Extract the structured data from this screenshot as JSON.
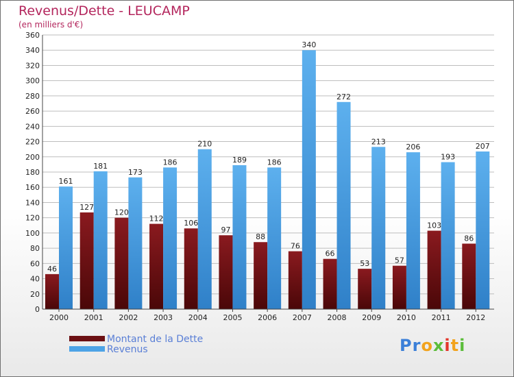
{
  "header": {
    "title": "Revenus/Dette - LEUCAMP",
    "subtitle": "(en milliers d'€)"
  },
  "legend": {
    "items": [
      {
        "label": "Montant de la Dette",
        "color": "#6b0f12"
      },
      {
        "label": "Revenus",
        "color": "#4da3e6"
      }
    ]
  },
  "logo": {
    "text": "Proxiti"
  },
  "colors": {
    "dette": "#6b0f12",
    "revenus": "#4da3e6",
    "title": "#b3255c",
    "grid": "#b9b9b9"
  },
  "chart_data": {
    "type": "bar",
    "title": "Revenus/Dette - LEUCAMP",
    "subtitle": "(en milliers d'€)",
    "xlabel": "",
    "ylabel": "",
    "ylim": [
      0,
      360
    ],
    "ytick_step": 20,
    "grid": true,
    "legend_position": "bottom-left",
    "categories": [
      "2000",
      "2001",
      "2002",
      "2003",
      "2004",
      "2005",
      "2006",
      "2007",
      "2008",
      "2009",
      "2010",
      "2011",
      "2012"
    ],
    "series": [
      {
        "name": "Montant de la Dette",
        "values": [
          46,
          127,
          120,
          112,
          106,
          97,
          88,
          76,
          66,
          53,
          57,
          103,
          86
        ]
      },
      {
        "name": "Revenus",
        "values": [
          161,
          181,
          173,
          186,
          210,
          189,
          186,
          340,
          272,
          213,
          206,
          193,
          207
        ]
      }
    ]
  }
}
